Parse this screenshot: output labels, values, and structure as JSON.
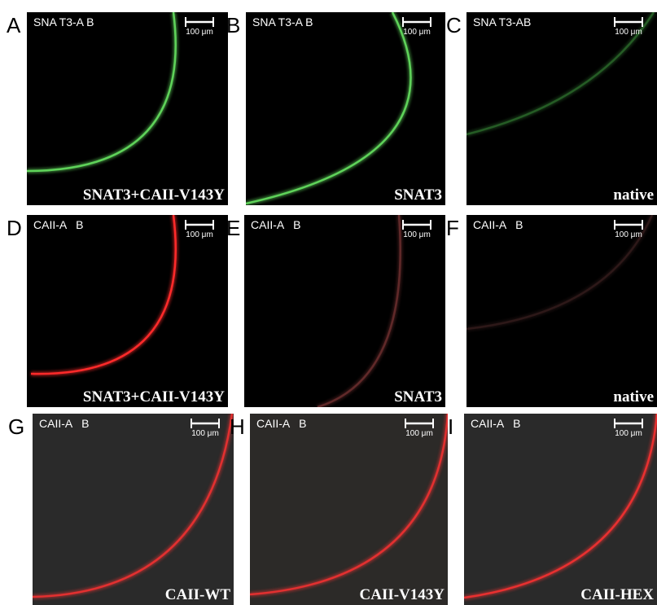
{
  "panels": [
    {
      "letter": "A",
      "label": "SNA T3-A B",
      "scale": "100 μm",
      "caption": "SNAT3+CAII-V143Y"
    },
    {
      "letter": "B",
      "label": "SNA T3-A B",
      "scale": "100 μm",
      "caption": "SNAT3"
    },
    {
      "letter": "C",
      "label": "SNA T3-AB",
      "scale": "100 μm",
      "caption": "native"
    },
    {
      "letter": "D",
      "label": "CAII-A   B",
      "scale": "100 μm",
      "caption": "SNAT3+CAII-V143Y"
    },
    {
      "letter": "E",
      "label": "CAII-A   B",
      "scale": "100 μm",
      "caption": "SNAT3"
    },
    {
      "letter": "F",
      "label": "CAII-A   B",
      "scale": "100 μm",
      "caption": "native"
    },
    {
      "letter": "G",
      "label": "CAII-A   B",
      "scale": "100 μm",
      "caption": "CAII-WT"
    },
    {
      "letter": "H",
      "label": "CAII-A   B",
      "scale": "100 μm",
      "caption": "CAII-V143Y"
    },
    {
      "letter": "I",
      "label": "CAII-A   B",
      "scale": "100 μm",
      "caption": "CAII-HEX"
    }
  ]
}
